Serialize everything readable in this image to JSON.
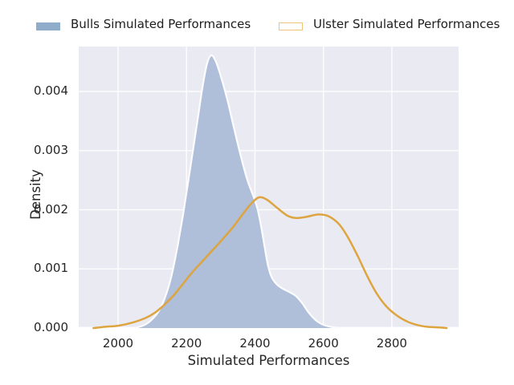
{
  "legend": {
    "items": [
      {
        "label": "Bulls Simulated Performances",
        "swatch": "filled",
        "color": "#8fadcb"
      },
      {
        "label": "Ulster Simulated Performances",
        "swatch": "outline",
        "color": "#eec37e"
      }
    ]
  },
  "colors": {
    "panel_background": "#eaeaf2",
    "grid": "#ffffff",
    "bulls_fill": "#afbed9",
    "bulls_edge": "#fcfcfe",
    "ulster_line": "#dda440",
    "text": "#262626"
  },
  "chart_data": {
    "type": "area",
    "title": "",
    "xlabel": "Simulated Performances",
    "ylabel": "Density",
    "xlim": [
      1885,
      2995
    ],
    "ylim": [
      0,
      0.00476
    ],
    "x_ticks": [
      2000,
      2200,
      2400,
      2600,
      2800
    ],
    "y_ticks": [
      0,
      0.001,
      0.002,
      0.003,
      0.004
    ],
    "y_tick_labels": [
      "0.000",
      "0.001",
      "0.002",
      "0.003",
      "0.004"
    ],
    "grid": true,
    "legend_position": "top",
    "series": [
      {
        "name": "Bulls Simulated Performances",
        "style": "filled-area",
        "fill_color": "#afbed9",
        "edge_color": "#fcfcfe",
        "points": [
          [
            2050,
            0.0
          ],
          [
            2080,
            6e-05
          ],
          [
            2105,
            0.00018
          ],
          [
            2125,
            0.00035
          ],
          [
            2145,
            0.00065
          ],
          [
            2160,
            0.00098
          ],
          [
            2175,
            0.00142
          ],
          [
            2190,
            0.00192
          ],
          [
            2205,
            0.00248
          ],
          [
            2220,
            0.00305
          ],
          [
            2235,
            0.00362
          ],
          [
            2248,
            0.00412
          ],
          [
            2260,
            0.00447
          ],
          [
            2272,
            0.00461
          ],
          [
            2284,
            0.00453
          ],
          [
            2298,
            0.0043
          ],
          [
            2318,
            0.00389
          ],
          [
            2338,
            0.0034
          ],
          [
            2358,
            0.00292
          ],
          [
            2378,
            0.0025
          ],
          [
            2398,
            0.00219
          ],
          [
            2408,
            0.002
          ],
          [
            2418,
            0.00172
          ],
          [
            2428,
            0.00138
          ],
          [
            2438,
            0.00106
          ],
          [
            2448,
            0.00087
          ],
          [
            2462,
            0.00075
          ],
          [
            2480,
            0.00067
          ],
          [
            2500,
            0.00061
          ],
          [
            2520,
            0.00054
          ],
          [
            2538,
            0.00042
          ],
          [
            2556,
            0.00027
          ],
          [
            2576,
            0.00014
          ],
          [
            2598,
            6e-05
          ],
          [
            2622,
            2e-05
          ],
          [
            2648,
            0.0
          ]
        ]
      },
      {
        "name": "Ulster Simulated Performances",
        "style": "line",
        "color": "#dda440",
        "points": [
          [
            1928,
            0.0
          ],
          [
            1960,
            2e-05
          ],
          [
            2000,
            4e-05
          ],
          [
            2040,
            9e-05
          ],
          [
            2080,
            0.00017
          ],
          [
            2110,
            0.00027
          ],
          [
            2140,
            0.00042
          ],
          [
            2165,
            0.00057
          ],
          [
            2190,
            0.00075
          ],
          [
            2215,
            0.00093
          ],
          [
            2245,
            0.00112
          ],
          [
            2275,
            0.00131
          ],
          [
            2305,
            0.0015
          ],
          [
            2335,
            0.0017
          ],
          [
            2365,
            0.00193
          ],
          [
            2390,
            0.00211
          ],
          [
            2412,
            0.00221
          ],
          [
            2435,
            0.00217
          ],
          [
            2465,
            0.00203
          ],
          [
            2495,
            0.0019
          ],
          [
            2520,
            0.00186
          ],
          [
            2550,
            0.00188
          ],
          [
            2585,
            0.00192
          ],
          [
            2615,
            0.00189
          ],
          [
            2645,
            0.00176
          ],
          [
            2672,
            0.00153
          ],
          [
            2700,
            0.00122
          ],
          [
            2728,
            0.00088
          ],
          [
            2756,
            0.00058
          ],
          [
            2785,
            0.00036
          ],
          [
            2815,
            0.00021
          ],
          [
            2845,
            0.00011
          ],
          [
            2875,
            5e-05
          ],
          [
            2905,
            2e-05
          ],
          [
            2940,
            1e-05
          ],
          [
            2960,
            0.0
          ]
        ]
      }
    ]
  }
}
